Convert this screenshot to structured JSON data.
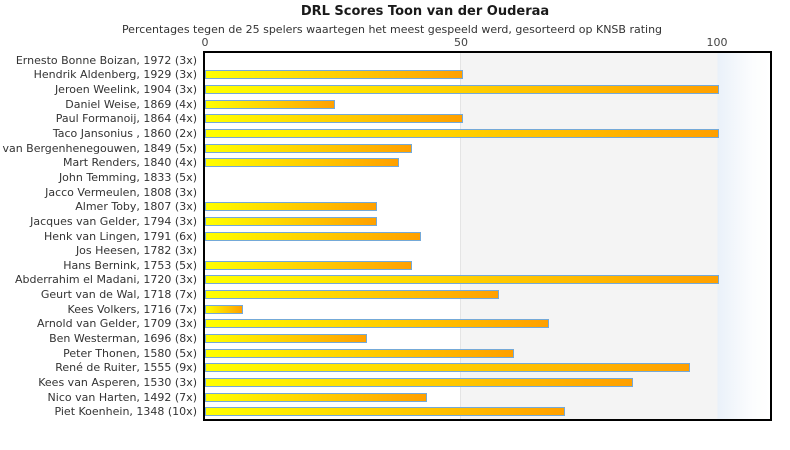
{
  "chart_data": {
    "type": "bar",
    "orientation": "horizontal",
    "title": "DRL Scores Toon van der Ouderaa",
    "subtitle": "Percentages tegen de 25 spelers waartegen het meest gespeeld werd, gesorteerd op KNSB rating",
    "x_axis": {
      "min": 0,
      "max": 110,
      "ticks": [
        0,
        50,
        100
      ],
      "position": "top"
    },
    "grid": false,
    "legend": false,
    "players": [
      {
        "label": "Ernesto Bonne Boizan, 1972 (3x)",
        "value": 0
      },
      {
        "label": "Hendrik Aldenberg, 1929 (3x)",
        "value": 50
      },
      {
        "label": "Jeroen Weelink, 1904 (3x)",
        "value": 100
      },
      {
        "label": "Daniel Weise, 1869 (4x)",
        "value": 25
      },
      {
        "label": "Paul Formanoij, 1864 (4x)",
        "value": 50
      },
      {
        "label": "Taco Jansonius , 1860 (2x)",
        "value": 100
      },
      {
        "label": "van Bergenhenegouwen, 1849 (5x)",
        "value": 40
      },
      {
        "label": "Mart Renders, 1840 (4x)",
        "value": 37.5
      },
      {
        "label": "John Temming, 1833 (5x)",
        "value": 0
      },
      {
        "label": "Jacco Vermeulen, 1808 (3x)",
        "value": 0
      },
      {
        "label": "Almer Toby, 1807 (3x)",
        "value": 33.3
      },
      {
        "label": "Jacques van Gelder, 1794 (3x)",
        "value": 33.3
      },
      {
        "label": "Henk van Lingen, 1791 (6x)",
        "value": 41.7
      },
      {
        "label": "Jos Heesen, 1782 (3x)",
        "value": 0
      },
      {
        "label": "Hans Bernink, 1753 (5x)",
        "value": 40
      },
      {
        "label": "Abderrahim el Madani, 1720 (3x)",
        "value": 100
      },
      {
        "label": "Geurt van de Wal, 1718 (7x)",
        "value": 57.1
      },
      {
        "label": "Kees Volkers, 1716 (7x)",
        "value": 7.1
      },
      {
        "label": "Arnold van Gelder, 1709 (3x)",
        "value": 66.7
      },
      {
        "label": "Ben Westerman, 1696 (8x)",
        "value": 31.25
      },
      {
        "label": "Peter Thonen, 1580 (5x)",
        "value": 60
      },
      {
        "label": "René de Ruiter, 1555 (9x)",
        "value": 94.4
      },
      {
        "label": "Kees van Asperen, 1530 (3x)",
        "value": 83.3
      },
      {
        "label": "Nico van Harten, 1492 (7x)",
        "value": 42.9
      },
      {
        "label": "Piet Koenhein, 1348 (10x)",
        "value": 70
      }
    ],
    "colors": {
      "bar_gradient_start": "#ffff00",
      "bar_gradient_end": "#ffa000",
      "bar_border": "#74a9d8",
      "band_50_100": "#f4f4f4",
      "band_over_100": "#eaf1f9",
      "plot_border": "#000000",
      "text": "#333333"
    }
  }
}
